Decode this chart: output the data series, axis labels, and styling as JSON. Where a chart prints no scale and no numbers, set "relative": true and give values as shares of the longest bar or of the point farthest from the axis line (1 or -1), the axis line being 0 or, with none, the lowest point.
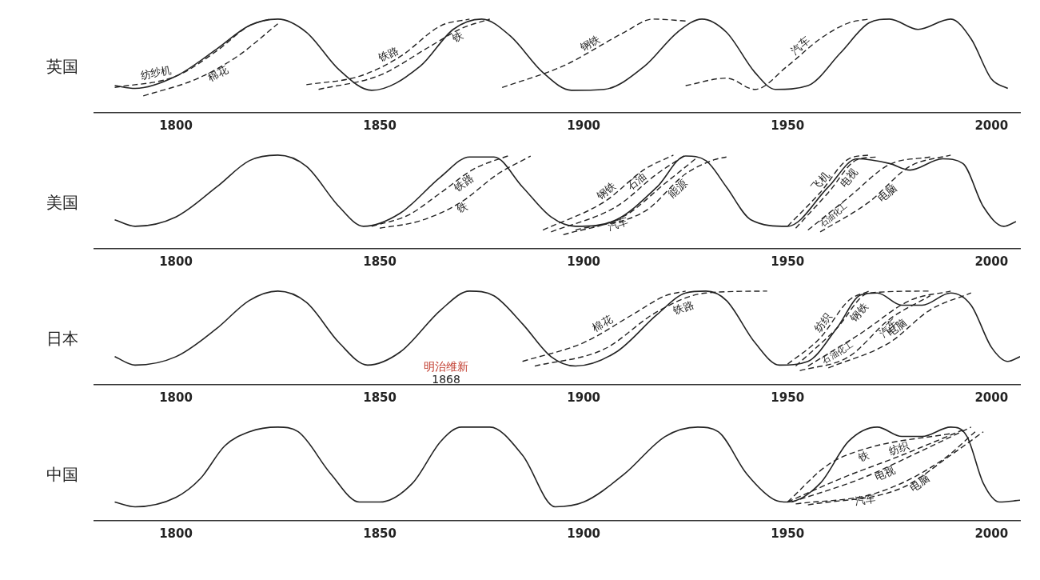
{
  "chart_data": [
    {
      "type": "line",
      "title": "英国",
      "relative": true,
      "xlim": [
        1780,
        2007
      ],
      "xticks": [
        1800,
        1850,
        1900,
        1950,
        2000
      ],
      "grid": false,
      "legend": false,
      "marker": "none",
      "series": [
        {
          "color": "#222222",
          "line_style": "solid",
          "x": [
            1785,
            1790,
            1800,
            1810,
            1818,
            1825,
            1832,
            1840,
            1848,
            1860,
            1868,
            1875,
            1882,
            1890,
            1897,
            1905,
            1915,
            1923,
            1929,
            1935,
            1942,
            1947,
            1955,
            1963,
            1970,
            1975,
            1982,
            1990,
            1995,
            2000,
            2004
          ],
          "values": [
            0.29,
            0.26,
            0.39,
            0.68,
            0.93,
            1,
            0.86,
            0.46,
            0.24,
            0.5,
            0.89,
            1,
            0.82,
            0.43,
            0.24,
            0.25,
            0.5,
            0.86,
            1,
            0.86,
            0.43,
            0.25,
            0.29,
            0.64,
            0.96,
            1,
            0.89,
            1,
            0.79,
            0.36,
            0.26
          ]
        },
        {
          "name": "纺纱机",
          "color": "#222222",
          "line_style": "dashed",
          "x": [
            1785,
            1800,
            1810,
            1818,
            1823
          ],
          "values": [
            0.27,
            0.39,
            0.66,
            0.93,
            1
          ]
        },
        {
          "name": "棉花",
          "color": "#222222",
          "line_style": "dashed",
          "x": [
            1792,
            1805,
            1815,
            1825
          ],
          "values": [
            0.18,
            0.36,
            0.6,
            0.95
          ]
        },
        {
          "name": "铁路",
          "color": "#222222",
          "line_style": "dashed",
          "x": [
            1832,
            1845,
            1855,
            1865,
            1872
          ],
          "values": [
            0.3,
            0.39,
            0.6,
            0.93,
            1
          ]
        },
        {
          "name": "铁",
          "color": "#222222",
          "line_style": "dashed",
          "x": [
            1835,
            1850,
            1862,
            1870,
            1877
          ],
          "values": [
            0.25,
            0.4,
            0.7,
            0.9,
            1
          ]
        },
        {
          "name": "钢铁",
          "color": "#222222",
          "line_style": "dashed",
          "x": [
            1880,
            1895,
            1910,
            1917,
            1925
          ],
          "values": [
            0.27,
            0.5,
            0.86,
            1,
            0.98
          ]
        },
        {
          "name": "汽车",
          "color": "#222222",
          "line_style": "dashed",
          "x": [
            1925,
            1935,
            1942,
            1950,
            1958,
            1965,
            1970
          ],
          "values": [
            0.29,
            0.37,
            0.25,
            0.5,
            0.79,
            0.96,
            1
          ]
        }
      ]
    },
    {
      "type": "line",
      "title": "美国",
      "relative": true,
      "xlim": [
        1780,
        2007
      ],
      "xticks": [
        1800,
        1850,
        1900,
        1950,
        2000
      ],
      "grid": false,
      "legend": false,
      "marker": "none",
      "series": [
        {
          "color": "#222222",
          "line_style": "solid",
          "x": [
            1785,
            1790,
            1800,
            1810,
            1818,
            1825,
            1832,
            1840,
            1846,
            1855,
            1865,
            1872,
            1878,
            1885,
            1892,
            1898,
            1908,
            1918,
            1925,
            1930,
            1935,
            1941,
            1950,
            1960,
            1967,
            1975,
            1980,
            1988,
            1993,
            1998,
            2003,
            2006
          ],
          "values": [
            0.31,
            0.24,
            0.34,
            0.66,
            0.94,
            1,
            0.88,
            0.45,
            0.24,
            0.38,
            0.77,
            0.98,
            0.98,
            0.66,
            0.34,
            0.24,
            0.31,
            0.66,
            0.99,
            0.94,
            0.66,
            0.31,
            0.24,
            0.66,
            0.96,
            0.91,
            0.84,
            0.96,
            0.91,
            0.45,
            0.24,
            0.29
          ]
        },
        {
          "name": "铁路",
          "color": "#222222",
          "line_style": "dashed",
          "x": [
            1848,
            1857,
            1865,
            1873,
            1882
          ],
          "values": [
            0.24,
            0.36,
            0.6,
            0.85,
            1
          ]
        },
        {
          "name": "铁",
          "color": "#222222",
          "line_style": "dashed",
          "x": [
            1850,
            1860,
            1870,
            1879,
            1887
          ],
          "values": [
            0.22,
            0.3,
            0.5,
            0.8,
            0.99
          ]
        },
        {
          "name": "钢铁",
          "color": "#222222",
          "line_style": "dashed",
          "x": [
            1890,
            1905,
            1915,
            1922
          ],
          "values": [
            0.2,
            0.5,
            0.85,
            1
          ]
        },
        {
          "name": "石油",
          "color": "#222222",
          "line_style": "dashed",
          "x": [
            1892,
            1908,
            1918,
            1925
          ],
          "values": [
            0.18,
            0.45,
            0.8,
            1
          ]
        },
        {
          "name": "汽车",
          "color": "#222222",
          "line_style": "dashed",
          "x": [
            1895,
            1910,
            1920,
            1928
          ],
          "values": [
            0.15,
            0.35,
            0.7,
            0.98
          ]
        },
        {
          "name": "能源",
          "color": "#222222",
          "line_style": "dashed",
          "x": [
            1898,
            1915,
            1925,
            1932,
            1935
          ],
          "values": [
            0.2,
            0.4,
            0.8,
            0.95,
            0.98
          ]
        },
        {
          "name": "飞机",
          "color": "#222222",
          "line_style": "dashed",
          "x": [
            1950,
            1958,
            1965,
            1970
          ],
          "values": [
            0.24,
            0.6,
            0.96,
            1
          ]
        },
        {
          "name": "电视",
          "color": "#222222",
          "line_style": "dashed",
          "x": [
            1952,
            1960,
            1967,
            1972
          ],
          "values": [
            0.22,
            0.6,
            0.95,
            0.98
          ]
        },
        {
          "name": "石油化工",
          "color": "#222222",
          "line_style": "dashed",
          "x": [
            1955,
            1965,
            1975,
            1985
          ],
          "values": [
            0.2,
            0.55,
            0.9,
            0.98
          ]
        },
        {
          "name": "电脑",
          "color": "#222222",
          "line_style": "dashed",
          "x": [
            1958,
            1970,
            1980,
            1990
          ],
          "values": [
            0.18,
            0.5,
            0.88,
            1
          ]
        }
      ]
    },
    {
      "type": "line",
      "title": "日本",
      "relative": true,
      "xlim": [
        1780,
        2007
      ],
      "xticks": [
        1800,
        1850,
        1900,
        1950,
        2000
      ],
      "grid": false,
      "legend": false,
      "marker": "none",
      "annotations": [
        "明治维新",
        "1868"
      ],
      "series": [
        {
          "color": "#222222",
          "line_style": "solid",
          "x": [
            1785,
            1790,
            1800,
            1810,
            1818,
            1825,
            1832,
            1840,
            1847,
            1855,
            1865,
            1872,
            1878,
            1885,
            1892,
            1898,
            1908,
            1918,
            1925,
            1930,
            1935,
            1942,
            1948,
            1955,
            1962,
            1968,
            1972,
            1978,
            1983,
            1990,
            1995,
            2000,
            2004,
            2007
          ],
          "values": [
            0.3,
            0.21,
            0.3,
            0.6,
            0.9,
            1,
            0.88,
            0.45,
            0.21,
            0.35,
            0.8,
            1,
            0.95,
            0.65,
            0.3,
            0.2,
            0.35,
            0.75,
            0.98,
            1,
            0.9,
            0.45,
            0.21,
            0.25,
            0.6,
            0.96,
            0.98,
            0.85,
            0.85,
            0.98,
            0.85,
            0.4,
            0.25,
            0.3
          ]
        },
        {
          "name": "棉花",
          "color": "#222222",
          "line_style": "dashed",
          "x": [
            1885,
            1900,
            1912,
            1920,
            1925
          ],
          "values": [
            0.25,
            0.45,
            0.75,
            0.95,
            1
          ]
        },
        {
          "name": "铁路",
          "color": "#222222",
          "line_style": "dashed",
          "x": [
            1888,
            1905,
            1918,
            1930,
            1945
          ],
          "values": [
            0.2,
            0.38,
            0.78,
            0.98,
            1
          ]
        },
        {
          "name": "纺织",
          "color": "#222222",
          "line_style": "dashed",
          "x": [
            1950,
            1958,
            1965,
            1970
          ],
          "values": [
            0.22,
            0.5,
            0.9,
            1
          ]
        },
        {
          "name": "钢铁",
          "color": "#222222",
          "line_style": "dashed",
          "x": [
            1952,
            1962,
            1970,
            1985
          ],
          "values": [
            0.2,
            0.6,
            0.98,
            1
          ]
        },
        {
          "name": "石油化工",
          "color": "#222222",
          "line_style": "dashed",
          "x": [
            1955,
            1968,
            1980,
            1990
          ],
          "values": [
            0.2,
            0.55,
            0.9,
            1
          ]
        },
        {
          "name": "电脑",
          "color": "#222222",
          "line_style": "dashed",
          "x": [
            1960,
            1975,
            1985,
            1995
          ],
          "values": [
            0.18,
            0.45,
            0.8,
            0.98
          ]
        },
        {
          "name": "汽车",
          "color": "#222222",
          "line_style": "dashed",
          "x": [
            1953,
            1965,
            1975,
            1985
          ],
          "values": [
            0.15,
            0.3,
            0.7,
            0.95
          ]
        }
      ]
    },
    {
      "type": "line",
      "title": "中国",
      "relative": true,
      "xlim": [
        1780,
        2007
      ],
      "xticks": [
        1800,
        1850,
        1900,
        1950,
        2000
      ],
      "grid": false,
      "legend": false,
      "marker": "none",
      "series": [
        {
          "color": "#222222",
          "line_style": "solid",
          "x": [
            1785,
            1790,
            1800,
            1806,
            1812,
            1818,
            1825,
            1830,
            1838,
            1845,
            1850,
            1858,
            1865,
            1870,
            1877,
            1885,
            1893,
            1900,
            1910,
            1920,
            1928,
            1933,
            1940,
            1947,
            1950,
            1958,
            1965,
            1972,
            1978,
            1983,
            1990,
            1994,
            1998,
            2002,
            2007
          ],
          "values": [
            0.2,
            0.15,
            0.25,
            0.45,
            0.8,
            0.95,
            1,
            0.95,
            0.5,
            0.2,
            0.2,
            0.4,
            0.85,
            1,
            1,
            0.7,
            0.15,
            0.2,
            0.5,
            0.9,
            1,
            0.95,
            0.5,
            0.22,
            0.2,
            0.4,
            0.85,
            1,
            0.9,
            0.9,
            1,
            0.9,
            0.4,
            0.2,
            0.22
          ]
        },
        {
          "name": "铁",
          "color": "#222222",
          "line_style": "dashed",
          "x": [
            1950,
            1960,
            1970,
            1990
          ],
          "values": [
            0.2,
            0.6,
            0.78,
            0.93
          ]
        },
        {
          "name": "纺织",
          "color": "#222222",
          "line_style": "dashed",
          "x": [
            1950,
            1963,
            1978,
            1993
          ],
          "values": [
            0.2,
            0.45,
            0.7,
            0.97
          ]
        },
        {
          "name": "电视",
          "color": "#222222",
          "line_style": "dashed",
          "x": [
            1951,
            1968,
            1983,
            1995
          ],
          "values": [
            0.2,
            0.45,
            0.75,
            1
          ]
        },
        {
          "name": "汽车",
          "color": "#222222",
          "line_style": "dashed",
          "x": [
            1952,
            1972,
            1988,
            1996
          ],
          "values": [
            0.18,
            0.3,
            0.65,
            0.95
          ]
        },
        {
          "name": "电脑",
          "color": "#222222",
          "line_style": "dashed",
          "x": [
            1955,
            1978,
            1990,
            1998
          ],
          "values": [
            0.17,
            0.35,
            0.7,
            0.95
          ]
        }
      ]
    }
  ]
}
